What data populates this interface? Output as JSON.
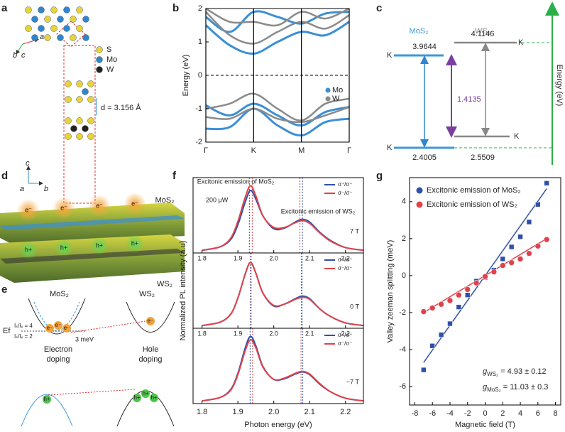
{
  "figure": {
    "panel_letters": [
      "a",
      "b",
      "c",
      "d",
      "e",
      "f",
      "g"
    ]
  },
  "panel_a": {
    "legend": [
      {
        "label": "S",
        "color": "#e6d43a"
      },
      {
        "label": "Mo",
        "color": "#2f86d0"
      },
      {
        "label": "W",
        "color": "#222222"
      }
    ],
    "axes_top": [
      "b",
      "a",
      "c"
    ],
    "axes_bottom": [
      "c",
      "a",
      "b"
    ],
    "spacing": "d = 3.156 Å"
  },
  "panel_c": {
    "materials": [
      "MoS₂",
      "WS₂"
    ],
    "valley_labels": [
      "K",
      "K",
      "K",
      "K"
    ],
    "mos2_cb": 3.9644,
    "ws2_cb": 4.1146,
    "mos2_vb": 2.4005,
    "ws2_vb": 2.5509,
    "gap": 1.4135,
    "axis_label": "Energy (eV)"
  },
  "panel_d": {
    "top": "MoS₂",
    "bottom": "WS₂",
    "electrons": [
      "e⁻",
      "e⁻",
      "e⁻",
      "e⁻"
    ],
    "holes": [
      "h+",
      "h+",
      "h+",
      "h+"
    ]
  },
  "panel_e": {
    "left": "MoS₂",
    "right": "WS₂",
    "fermi": "Ef",
    "ratio_high": "Iₛ/Iᵥ = 4",
    "ratio_low": "Iₛ/Iᵥ = 2",
    "splitting": "3 meV",
    "electron_doping": [
      "Electron",
      "doping"
    ],
    "hole_doping": [
      "Hole",
      "doping"
    ],
    "electrons": [
      "e⁻",
      "e⁻",
      "e⁻",
      "e⁻"
    ],
    "holes": [
      "h+",
      "h+",
      "h+",
      "h+"
    ]
  },
  "chart_data": [
    {
      "type": "bands",
      "ylabel": "Energy (eV)",
      "x": [
        0,
        0.5,
        1,
        1.5,
        2,
        2.5,
        3
      ],
      "xlim": [
        0,
        3
      ],
      "xticks": [
        {
          "value": 0,
          "label": "Γ"
        },
        {
          "value": 1,
          "label": "K"
        },
        {
          "value": 2,
          "label": "M"
        },
        {
          "value": 3,
          "label": "Γ"
        }
      ],
      "ylim": [
        -2,
        2
      ],
      "yticks": [
        -2,
        -1,
        0,
        1,
        2
      ],
      "fermi_level": 0,
      "series": [
        {
          "name": "Mo",
          "color": "#3b8fd6",
          "bands": [
            [
              1.5,
              0.9,
              0.65,
              1.0,
              1.3,
              1.2,
              1.6
            ],
            [
              1.75,
              1.3,
              1.9,
              1.75,
              1.55,
              1.85,
              1.9
            ],
            [
              -0.9,
              -1.2,
              -0.85,
              -1.2,
              -1.5,
              -1.1,
              -0.95
            ],
            [
              -1.6,
              -1.55,
              -1.0,
              -1.5,
              -1.8,
              -1.4,
              -1.3
            ]
          ]
        },
        {
          "name": "W",
          "color": "#8a8a8a",
          "bands": [
            [
              1.9,
              1.2,
              0.95,
              1.3,
              1.6,
              1.4,
              1.8
            ],
            [
              2.0,
              1.6,
              1.6,
              1.5,
              1.9,
              1.7,
              2.0
            ],
            [
              -1.0,
              -0.85,
              -0.55,
              -1.0,
              -1.35,
              -0.85,
              -0.7
            ],
            [
              -1.25,
              -1.3,
              -1.0,
              -1.3,
              -1.4,
              -1.2,
              -0.95
            ]
          ]
        }
      ]
    },
    {
      "type": "line",
      "field": "7 T",
      "annotations": [
        "Excitonic emission of MoS₂",
        "200 μW",
        "Excitonic emission of WS₂"
      ],
      "x": [
        1.8,
        1.85,
        1.88,
        1.9,
        1.92,
        1.935,
        1.95,
        1.97,
        2.0,
        2.03,
        2.06,
        2.08,
        2.1,
        2.13,
        2.16,
        2.2,
        2.25
      ],
      "xlim": [
        1.775,
        2.25
      ],
      "xticks": [
        1.8,
        1.9,
        {
          "value": 2,
          "label": "2.0"
        },
        2.1,
        2.2
      ],
      "ylim": [
        0,
        1.12
      ],
      "peak_lines": [
        {
          "x": 1.932,
          "color": "#3050a8"
        },
        {
          "x": 1.94,
          "color": "#e0424a"
        },
        {
          "x": 2.073,
          "color": "#e0424a"
        },
        {
          "x": 2.08,
          "color": "#3050a8"
        }
      ],
      "series": [
        {
          "name": "σ⁺/σ⁺",
          "color": "#3050a8",
          "values": [
            0.04,
            0.09,
            0.2,
            0.42,
            0.75,
            0.93,
            0.8,
            0.55,
            0.36,
            0.37,
            0.46,
            0.5,
            0.46,
            0.3,
            0.18,
            0.08,
            0.04
          ]
        },
        {
          "name": "σ⁻/σ⁻",
          "color": "#e0424a",
          "values": [
            0.04,
            0.09,
            0.22,
            0.47,
            0.82,
            1.0,
            0.85,
            0.55,
            0.38,
            0.38,
            0.45,
            0.48,
            0.44,
            0.29,
            0.17,
            0.08,
            0.04
          ]
        }
      ]
    },
    {
      "type": "line",
      "field": "0 T",
      "ylabel": "Normalized PL intensity (a.u)",
      "x": [
        1.8,
        1.85,
        1.88,
        1.9,
        1.92,
        1.935,
        1.95,
        1.97,
        2.0,
        2.03,
        2.06,
        2.08,
        2.1,
        2.13,
        2.16,
        2.2,
        2.25
      ],
      "xlim": [
        1.775,
        2.25
      ],
      "xticks": [
        1.8,
        1.9,
        {
          "value": 2,
          "label": "2.0"
        },
        2.1,
        2.2
      ],
      "ylim": [
        0,
        1.12
      ],
      "peak_lines": [
        {
          "x": 1.935,
          "color": "#3050a8"
        },
        {
          "x": 1.937,
          "color": "#e0424a"
        },
        {
          "x": 2.077,
          "color": "#e0424a"
        },
        {
          "x": 2.079,
          "color": "#3050a8"
        }
      ],
      "series": [
        {
          "name": "σ⁺/σ⁺",
          "color": "#3050a8",
          "values": [
            0.04,
            0.09,
            0.21,
            0.45,
            0.8,
            0.98,
            0.82,
            0.52,
            0.33,
            0.36,
            0.44,
            0.48,
            0.44,
            0.28,
            0.17,
            0.08,
            0.04
          ]
        },
        {
          "name": "σ⁻/σ⁻",
          "color": "#e0424a",
          "values": [
            0.04,
            0.09,
            0.21,
            0.45,
            0.8,
            0.98,
            0.82,
            0.52,
            0.34,
            0.36,
            0.43,
            0.46,
            0.43,
            0.28,
            0.17,
            0.08,
            0.04
          ]
        }
      ]
    },
    {
      "type": "line",
      "field": "−7 T",
      "xlabel": "Photon energy (eV)",
      "x": [
        1.8,
        1.85,
        1.88,
        1.9,
        1.92,
        1.935,
        1.95,
        1.97,
        2.0,
        2.03,
        2.06,
        2.08,
        2.1,
        2.13,
        2.16,
        2.2,
        2.25
      ],
      "xlim": [
        1.775,
        2.25
      ],
      "xticks": [
        1.8,
        1.9,
        {
          "value": 2,
          "label": "2.0"
        },
        2.1,
        2.2
      ],
      "ylim": [
        0,
        1.12
      ],
      "peak_lines": [
        {
          "x": 1.934,
          "color": "#3050a8"
        },
        {
          "x": 1.941,
          "color": "#e0424a"
        },
        {
          "x": 2.076,
          "color": "#e0424a"
        },
        {
          "x": 2.081,
          "color": "#3050a8"
        }
      ],
      "series": [
        {
          "name": "σ⁺/σ⁺",
          "color": "#3050a8",
          "values": [
            0.04,
            0.09,
            0.21,
            0.45,
            0.82,
            1.0,
            0.86,
            0.55,
            0.36,
            0.37,
            0.44,
            0.47,
            0.43,
            0.28,
            0.17,
            0.08,
            0.04
          ]
        },
        {
          "name": "σ⁻/σ⁻",
          "color": "#e0424a",
          "values": [
            0.04,
            0.09,
            0.2,
            0.43,
            0.78,
            0.95,
            0.83,
            0.54,
            0.36,
            0.38,
            0.45,
            0.48,
            0.44,
            0.29,
            0.17,
            0.08,
            0.04
          ]
        }
      ]
    },
    {
      "type": "scatter",
      "xlabel": "Magnetic field (T)",
      "ylabel": "Valley zeeman splitting (meV)",
      "xlim": [
        -8.6,
        8.6
      ],
      "xticks": [
        -8,
        -6,
        -4,
        -2,
        0,
        2,
        4,
        6,
        8
      ],
      "ylim": [
        -7,
        5.3
      ],
      "yticks": [
        -6,
        -4,
        -2,
        0,
        2,
        4
      ],
      "series": [
        {
          "name": "Excitonic emission of MoS₂",
          "color": "#3050a8",
          "x": [
            -7,
            -6,
            -5,
            -4,
            -3,
            -2,
            -1,
            0,
            1,
            2,
            3,
            4,
            5,
            6,
            7
          ],
          "values": [
            -5.1,
            -3.8,
            -3.2,
            -2.6,
            -1.7,
            -1.05,
            -0.3,
            -0.1,
            0.3,
            0.9,
            1.55,
            2.1,
            2.9,
            3.85,
            5.0
          ]
        },
        {
          "name": "Excitonic emission of WS₂",
          "color": "#e0424a",
          "x": [
            -7,
            -6,
            -5,
            -4,
            -3,
            -2,
            -1,
            0,
            1,
            2,
            3,
            4,
            5,
            6,
            7
          ],
          "values": [
            -1.95,
            -1.75,
            -1.55,
            -1.35,
            -1.05,
            -0.75,
            -0.4,
            -0.05,
            0.2,
            0.55,
            0.7,
            0.9,
            1.2,
            1.6,
            1.95
          ]
        }
      ],
      "fits": [
        {
          "color": "#3050a8",
          "x": [
            -7,
            7
          ],
          "values": [
            -4.7,
            4.7
          ]
        },
        {
          "color": "#e0424a",
          "x": [
            -7,
            7
          ],
          "values": [
            -2.0,
            2.0
          ]
        }
      ],
      "annotations": [
        {
          "symbol": "g",
          "subscript": "WS₂",
          "text": " = 4.93 ± 0.12"
        },
        {
          "symbol": "g",
          "subscript": "MoS₂",
          "text": " = 11.03 ± 0.3"
        }
      ]
    }
  ]
}
